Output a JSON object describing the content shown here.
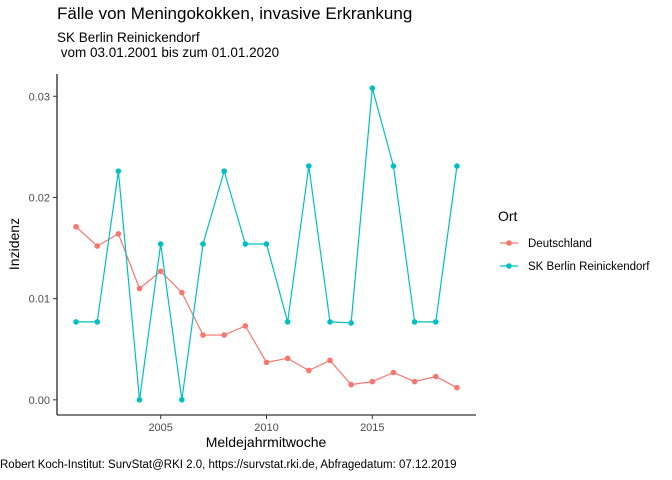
{
  "chart_data": {
    "type": "line",
    "title": "Fälle von Meningokokken, invasive Erkrankung",
    "subtitle": "SK Berlin Reinickendorf\n vom 03.01.2001 bis zum 01.01.2020",
    "xlabel": "Meldejahrmitwoche",
    "ylabel": "Inzidenz",
    "x": [
      2001,
      2002,
      2003,
      2004,
      2005,
      2006,
      2007,
      2008,
      2009,
      2010,
      2011,
      2012,
      2013,
      2014,
      2015,
      2016,
      2017,
      2018,
      2019
    ],
    "xlim": [
      2000.1,
      2019.9
    ],
    "ylim": [
      -0.0015,
      0.0322
    ],
    "xticks": [
      2005,
      2010,
      2015
    ],
    "yticks": [
      0.0,
      0.01,
      0.02,
      0.03
    ],
    "ytick_labels": [
      "0.00",
      "0.01",
      "0.02",
      "0.03"
    ],
    "grid": false,
    "legend": {
      "title": "Ort",
      "placement": "right"
    },
    "series": [
      {
        "name": "Deutschland",
        "color": "#F8766D",
        "values": [
          0.0171,
          0.0152,
          0.0164,
          0.011,
          0.0127,
          0.0106,
          0.0064,
          0.0064,
          0.0073,
          0.0037,
          0.0041,
          0.0029,
          0.0039,
          0.0015,
          0.0018,
          0.0027,
          0.0018,
          0.0023,
          0.0012
        ]
      },
      {
        "name": "SK Berlin Reinickendorf",
        "color": "#00BFC4",
        "values": [
          0.0077,
          0.0077,
          0.0226,
          0.0,
          0.0154,
          0.0,
          0.0154,
          0.0226,
          0.0154,
          0.0154,
          0.0077,
          0.0231,
          0.0077,
          0.0076,
          0.0308,
          0.0231,
          0.0077,
          0.0077,
          0.0231
        ]
      }
    ]
  },
  "caption": "Robert Koch-Institut: SurvStat@RKI 2.0, https://survstat.rki.de, Abfragedatum: 07.12.2019"
}
